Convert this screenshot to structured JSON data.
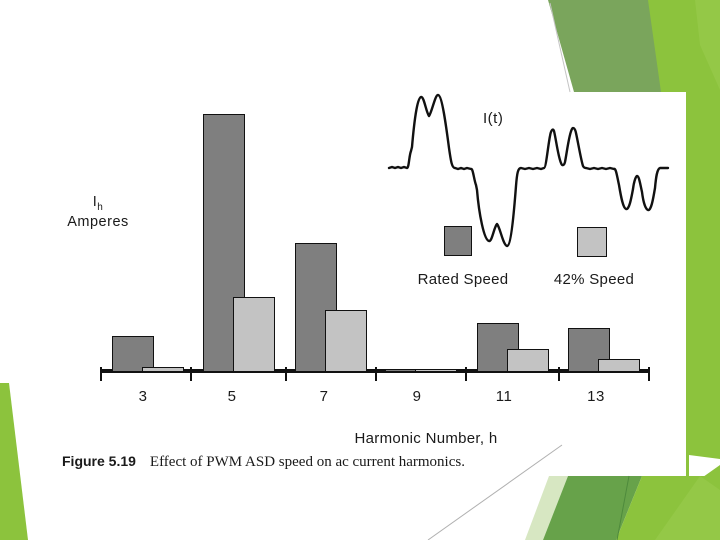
{
  "slide": {
    "background_color": "#ffffff",
    "theme_colors": {
      "bright_green": "#8cc33d",
      "bright_green_alt": "#94c847",
      "sage_green": "#7aa55c",
      "medium_green": "#67a24a",
      "pale_green": "#d7e7c2"
    }
  },
  "figure": {
    "y_axis_label_main": "I",
    "y_axis_label_sub": "h",
    "y_axis_label_line2": "Amperes",
    "waveform_label": "I(t)",
    "x_axis_label": "Harmonic Number, h",
    "legend": [
      {
        "label": "Rated Speed",
        "color": "#7f7f7f"
      },
      {
        "label": "42% Speed",
        "color": "#c3c3c3"
      }
    ],
    "caption_prefix": "Figure 5.19",
    "caption_text": "Effect of PWM ASD speed on ac current harmonics."
  },
  "chart_data": {
    "type": "bar",
    "title": "",
    "xlabel": "Harmonic Number, h",
    "ylabel": "Ih Amperes",
    "categories": [
      "3",
      "5",
      "7",
      "9",
      "11",
      "13"
    ],
    "series": [
      {
        "name": "Rated Speed",
        "color": "#7f7f7f",
        "values": [
          14,
          100,
          50,
          1,
          19,
          17
        ]
      },
      {
        "name": "42% Speed",
        "color": "#c3c3c3",
        "values": [
          2,
          29,
          24,
          1,
          9,
          5
        ]
      }
    ],
    "ylim": [
      0,
      100
    ],
    "grid": false,
    "legend_position": "upper-right, below current waveform",
    "note": "Source figure has no numeric y scale; values are bar heights as percent of the tallest bar (rated-speed 5th harmonic). Inset shows ac line current waveform I(t): large double-humped cycle at rated speed followed by a smaller cycle at 42% speed."
  }
}
